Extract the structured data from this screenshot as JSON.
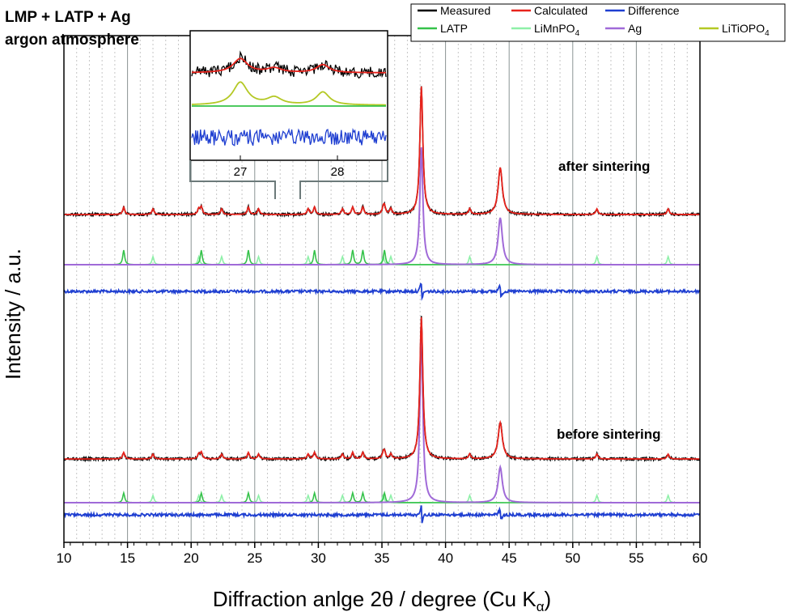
{
  "chart_data": {
    "type": "line",
    "title_lines": [
      "LMP + LATP + Ag",
      "argon atmosphere"
    ],
    "xlabel_main": "Diffraction anlge 2θ  /  degree (Cu K",
    "xlabel_sub": "α",
    "xlabel_close": ")",
    "ylabel": "Intensity / a.u.",
    "xlim": [
      10,
      60
    ],
    "xticks": [
      10,
      15,
      20,
      25,
      30,
      35,
      40,
      45,
      50,
      55,
      60
    ],
    "ylim": [
      0,
      1
    ],
    "y_ticks_shown": false,
    "grid": true,
    "legend_position": "top-right",
    "annotations": [
      "after sintering",
      "before sintering"
    ],
    "peaks": {
      "Ag": [
        38.1,
        44.3
      ],
      "LATP": [
        14.7,
        20.8,
        24.5,
        29.7,
        32.7,
        33.5,
        35.2
      ],
      "LiMnPO4": [
        17.0,
        20.6,
        22.4,
        25.3,
        29.2,
        31.9,
        35.1,
        35.7,
        41.9,
        51.9,
        57.5
      ],
      "LiTiOPO4": [
        27.0,
        27.35,
        27.85
      ]
    },
    "series": [
      {
        "name": "Measured",
        "color": "#000000"
      },
      {
        "name": "Calculated",
        "color": "#e8231c"
      },
      {
        "name": "Difference",
        "color": "#1f3fd1"
      },
      {
        "name": "LATP",
        "color": "#35c24a"
      },
      {
        "name": "LiMnPO",
        "name_sub": "4",
        "color": "#8ef0a8"
      },
      {
        "name": "Ag",
        "color": "#a06ad8"
      },
      {
        "name": "LiTiOPO",
        "name_sub": "4",
        "color": "#b4c824"
      }
    ],
    "inset": {
      "xlim": [
        26.5,
        28.5
      ],
      "xticks": [
        27,
        28
      ]
    }
  }
}
